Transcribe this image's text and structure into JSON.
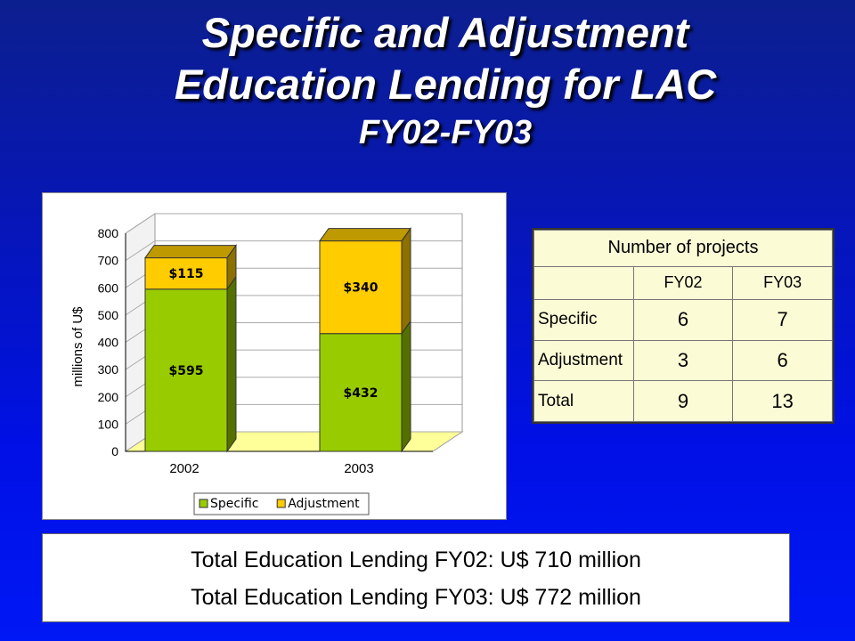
{
  "title": {
    "line1": "Specific and Adjustment",
    "line2": "Education Lending for LAC",
    "line3": "FY02-FY03"
  },
  "chart_data": {
    "type": "bar",
    "stacked": true,
    "three_d": true,
    "categories": [
      "2002",
      "2003"
    ],
    "series": [
      {
        "name": "Specific",
        "values": [
          595,
          432
        ],
        "labels": [
          "$595",
          "$432"
        ],
        "color": "#99cc00"
      },
      {
        "name": "Adjustment",
        "values": [
          115,
          340
        ],
        "labels": [
          "$115",
          "$340"
        ],
        "color": "#ffcc00"
      }
    ],
    "ylabel": "millions of U$",
    "ylim": [
      0,
      800
    ],
    "yticks": [
      "0",
      "100",
      "200",
      "300",
      "400",
      "500",
      "600",
      "700",
      "800"
    ],
    "grid": true,
    "legend_position": "bottom"
  },
  "projects_table": {
    "caption": "Number of projects",
    "columns": [
      "FY02",
      "FY03"
    ],
    "rows": [
      {
        "label": "Specific",
        "values": [
          "6",
          "7"
        ]
      },
      {
        "label": "Adjustment",
        "values": [
          "3",
          "6"
        ]
      },
      {
        "label": "Total",
        "values": [
          "9",
          "13"
        ]
      }
    ]
  },
  "totals": {
    "fy02": "Total Education Lending FY02: U$ 710 million",
    "fy03": "Total Education Lending FY03: U$ 772 million"
  },
  "colors": {
    "background": "#0616b8",
    "specific": "#99cc00",
    "adjustment": "#ffcc00",
    "table_bg": "#fbfbd6",
    "floor": "#ffff99"
  }
}
